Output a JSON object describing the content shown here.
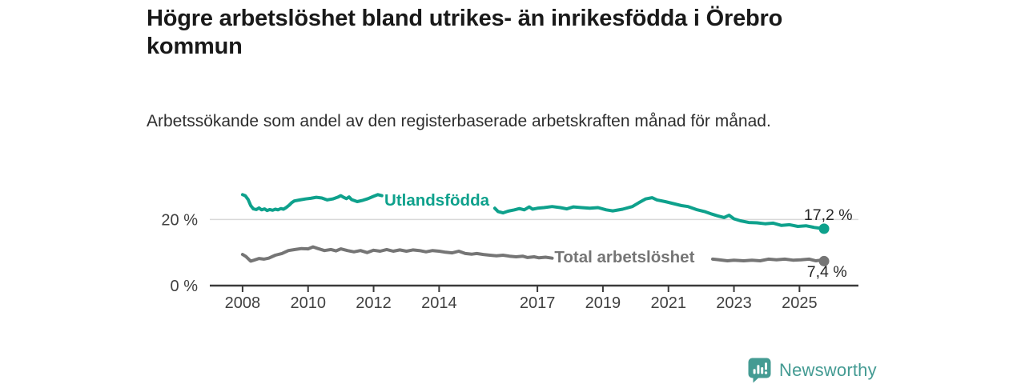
{
  "header": {
    "title": "Högre arbetslöshet bland utrikes- än inrikesfödda i Örebro kommun",
    "subtitle": "Arbetssökande som andel av den registerbaserade arbetskraften månad för månad."
  },
  "footer": {
    "brand": "Newsworthy",
    "brand_color": "#449b93",
    "logo_icon": "bar-chart-speech-bubble-icon"
  },
  "chart_data": {
    "type": "line",
    "title": "Högre arbetslöshet bland utrikes- än inrikesfödda i Örebro kommun",
    "subtitle": "Arbetssökande som andel av den registerbaserade arbetskraften månad för månad.",
    "unit": "%",
    "xlim": [
      2007.0,
      2026.8
    ],
    "ylim": [
      0,
      30
    ],
    "x_ticks": [
      2008,
      2010,
      2012,
      2014,
      2017,
      2019,
      2021,
      2023,
      2025
    ],
    "x_tick_labels": [
      "2008",
      "2010",
      "2012",
      "2014",
      "2017",
      "2019",
      "2021",
      "2023",
      "2025"
    ],
    "y_ticks": [
      {
        "value": 0,
        "label": "0 %"
      },
      {
        "value": 20,
        "label": "20 %"
      }
    ],
    "gridlines": [
      20
    ],
    "axis_color": "#3a3a3a",
    "grid_color": "#d9d9d9",
    "legend_position": "inline-labels",
    "grid": "horizontal-only",
    "series": [
      {
        "name": "Utlandsfödda",
        "slug": "utlandsfodda",
        "color": "#0ea18c",
        "line_width": 4,
        "label": {
          "text": "Utlandsfödda",
          "x": 2012.33,
          "y": 25.9,
          "anchor": "start"
        },
        "end_dot": {
          "x": 2025.75,
          "y": 17.2
        },
        "end_label": {
          "text": "17,2 %",
          "x": 2026.62,
          "y": 21.5,
          "anchor": "end"
        },
        "segments": [
          [
            [
              2008.0,
              27.5
            ],
            [
              2008.08,
              27.2
            ],
            [
              2008.17,
              26.0
            ],
            [
              2008.25,
              24.2
            ],
            [
              2008.33,
              23.2
            ],
            [
              2008.42,
              23.0
            ],
            [
              2008.5,
              23.5
            ],
            [
              2008.58,
              22.9
            ],
            [
              2008.67,
              23.2
            ],
            [
              2008.75,
              22.7
            ],
            [
              2008.83,
              23.0
            ],
            [
              2008.92,
              22.8
            ],
            [
              2009.0,
              23.1
            ],
            [
              2009.08,
              22.9
            ],
            [
              2009.17,
              23.3
            ],
            [
              2009.25,
              23.1
            ],
            [
              2009.33,
              23.6
            ],
            [
              2009.42,
              24.3
            ],
            [
              2009.5,
              25.1
            ],
            [
              2009.58,
              25.6
            ],
            [
              2009.75,
              25.9
            ],
            [
              2009.92,
              26.2
            ],
            [
              2010.08,
              26.4
            ],
            [
              2010.25,
              26.7
            ],
            [
              2010.42,
              26.5
            ],
            [
              2010.58,
              25.9
            ],
            [
              2010.75,
              26.2
            ],
            [
              2010.92,
              26.8
            ],
            [
              2011.0,
              27.2
            ],
            [
              2011.08,
              26.7
            ],
            [
              2011.17,
              26.3
            ],
            [
              2011.25,
              26.8
            ],
            [
              2011.33,
              26.0
            ],
            [
              2011.5,
              25.4
            ],
            [
              2011.67,
              25.8
            ],
            [
              2011.83,
              26.3
            ],
            [
              2012.0,
              27.0
            ],
            [
              2012.13,
              27.5
            ],
            [
              2012.25,
              27.2
            ]
          ],
          [
            [
              2015.7,
              23.4
            ],
            [
              2015.8,
              22.4
            ],
            [
              2015.95,
              22.0
            ],
            [
              2016.1,
              22.5
            ],
            [
              2016.3,
              22.9
            ],
            [
              2016.45,
              23.3
            ],
            [
              2016.6,
              22.9
            ],
            [
              2016.75,
              23.8
            ],
            [
              2016.85,
              23.1
            ],
            [
              2017.0,
              23.4
            ],
            [
              2017.2,
              23.6
            ],
            [
              2017.45,
              23.9
            ],
            [
              2017.7,
              23.6
            ],
            [
              2017.9,
              23.2
            ],
            [
              2018.1,
              23.8
            ],
            [
              2018.35,
              23.6
            ],
            [
              2018.6,
              23.4
            ],
            [
              2018.85,
              23.6
            ],
            [
              2019.1,
              22.9
            ],
            [
              2019.3,
              22.6
            ],
            [
              2019.6,
              23.1
            ],
            [
              2019.9,
              23.9
            ],
            [
              2020.1,
              25.1
            ],
            [
              2020.3,
              26.2
            ],
            [
              2020.5,
              26.6
            ],
            [
              2020.65,
              25.9
            ],
            [
              2020.9,
              25.4
            ],
            [
              2021.15,
              24.8
            ],
            [
              2021.4,
              24.2
            ],
            [
              2021.6,
              23.9
            ],
            [
              2021.85,
              23.0
            ],
            [
              2022.1,
              22.4
            ],
            [
              2022.3,
              21.7
            ],
            [
              2022.5,
              21.1
            ],
            [
              2022.7,
              20.6
            ],
            [
              2022.85,
              21.3
            ],
            [
              2023.0,
              20.2
            ],
            [
              2023.2,
              19.6
            ],
            [
              2023.45,
              19.1
            ],
            [
              2023.7,
              19.0
            ],
            [
              2023.95,
              18.7
            ],
            [
              2024.2,
              18.9
            ],
            [
              2024.45,
              18.2
            ],
            [
              2024.7,
              18.4
            ],
            [
              2024.95,
              17.9
            ],
            [
              2025.2,
              18.1
            ],
            [
              2025.45,
              17.6
            ],
            [
              2025.6,
              17.4
            ],
            [
              2025.75,
              17.2
            ]
          ]
        ]
      },
      {
        "name": "Total arbetslöshet",
        "slug": "total-arbetsloshet",
        "color": "#757575",
        "line_width": 4,
        "label": {
          "text": "Total arbetslöshet",
          "x": 2017.52,
          "y": 8.7,
          "anchor": "start"
        },
        "end_dot": {
          "x": 2025.75,
          "y": 7.4
        },
        "end_label": {
          "text": "7,4 %",
          "x": 2026.45,
          "y": 4.3,
          "anchor": "end"
        },
        "segments": [
          [
            [
              2008.0,
              9.4
            ],
            [
              2008.1,
              8.8
            ],
            [
              2008.25,
              7.4
            ],
            [
              2008.35,
              7.7
            ],
            [
              2008.5,
              8.2
            ],
            [
              2008.65,
              8.0
            ],
            [
              2008.8,
              8.3
            ],
            [
              2009.0,
              9.2
            ],
            [
              2009.2,
              9.7
            ],
            [
              2009.4,
              10.6
            ],
            [
              2009.6,
              10.9
            ],
            [
              2009.8,
              11.2
            ],
            [
              2010.0,
              11.1
            ],
            [
              2010.15,
              11.7
            ],
            [
              2010.3,
              11.2
            ],
            [
              2010.5,
              10.6
            ],
            [
              2010.7,
              10.9
            ],
            [
              2010.85,
              10.5
            ],
            [
              2011.0,
              11.1
            ],
            [
              2011.2,
              10.6
            ],
            [
              2011.4,
              10.2
            ],
            [
              2011.6,
              10.6
            ],
            [
              2011.8,
              10.0
            ],
            [
              2012.0,
              10.7
            ],
            [
              2012.2,
              10.4
            ],
            [
              2012.4,
              10.9
            ],
            [
              2012.6,
              10.4
            ],
            [
              2012.8,
              10.8
            ],
            [
              2013.0,
              10.4
            ],
            [
              2013.2,
              10.8
            ],
            [
              2013.4,
              10.6
            ],
            [
              2013.6,
              10.2
            ],
            [
              2013.8,
              10.6
            ],
            [
              2014.0,
              10.4
            ],
            [
              2014.2,
              10.1
            ],
            [
              2014.4,
              9.9
            ],
            [
              2014.6,
              10.4
            ],
            [
              2014.8,
              9.7
            ],
            [
              2015.0,
              9.5
            ],
            [
              2015.15,
              9.7
            ],
            [
              2015.35,
              9.4
            ],
            [
              2015.55,
              9.2
            ],
            [
              2015.75,
              9.0
            ],
            [
              2015.95,
              9.2
            ],
            [
              2016.15,
              8.9
            ],
            [
              2016.35,
              8.7
            ],
            [
              2016.55,
              8.9
            ],
            [
              2016.7,
              8.5
            ],
            [
              2016.9,
              8.7
            ],
            [
              2017.05,
              8.4
            ],
            [
              2017.25,
              8.6
            ],
            [
              2017.45,
              8.3
            ]
          ],
          [
            [
              2022.35,
              8.0
            ],
            [
              2022.55,
              7.8
            ],
            [
              2022.8,
              7.5
            ],
            [
              2023.0,
              7.7
            ],
            [
              2023.3,
              7.5
            ],
            [
              2023.55,
              7.7
            ],
            [
              2023.8,
              7.5
            ],
            [
              2024.05,
              8.0
            ],
            [
              2024.3,
              7.8
            ],
            [
              2024.55,
              8.0
            ],
            [
              2024.8,
              7.7
            ],
            [
              2025.05,
              7.8
            ],
            [
              2025.3,
              8.0
            ],
            [
              2025.5,
              7.5
            ],
            [
              2025.65,
              7.7
            ],
            [
              2025.75,
              7.4
            ]
          ]
        ]
      }
    ]
  }
}
